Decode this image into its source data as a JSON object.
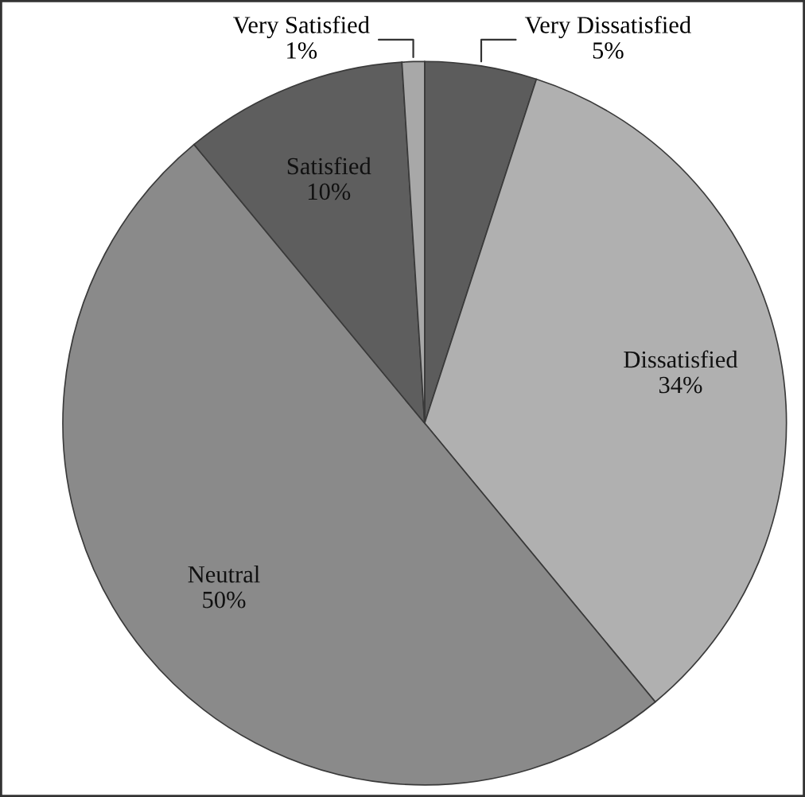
{
  "chart_data": {
    "type": "pie",
    "categories": [
      "Very Dissatisfied",
      "Dissatisfied",
      "Neutral",
      "Satisfied",
      "Very Satisfied"
    ],
    "values": [
      5,
      34,
      50,
      10,
      1
    ],
    "value_labels": [
      "5%",
      "34%",
      "50%",
      "10%",
      "1%"
    ],
    "colors": [
      "#5c5c5c",
      "#b0b0b0",
      "#8a8a8a",
      "#5e5e5e",
      "#a8a8a8"
    ]
  }
}
